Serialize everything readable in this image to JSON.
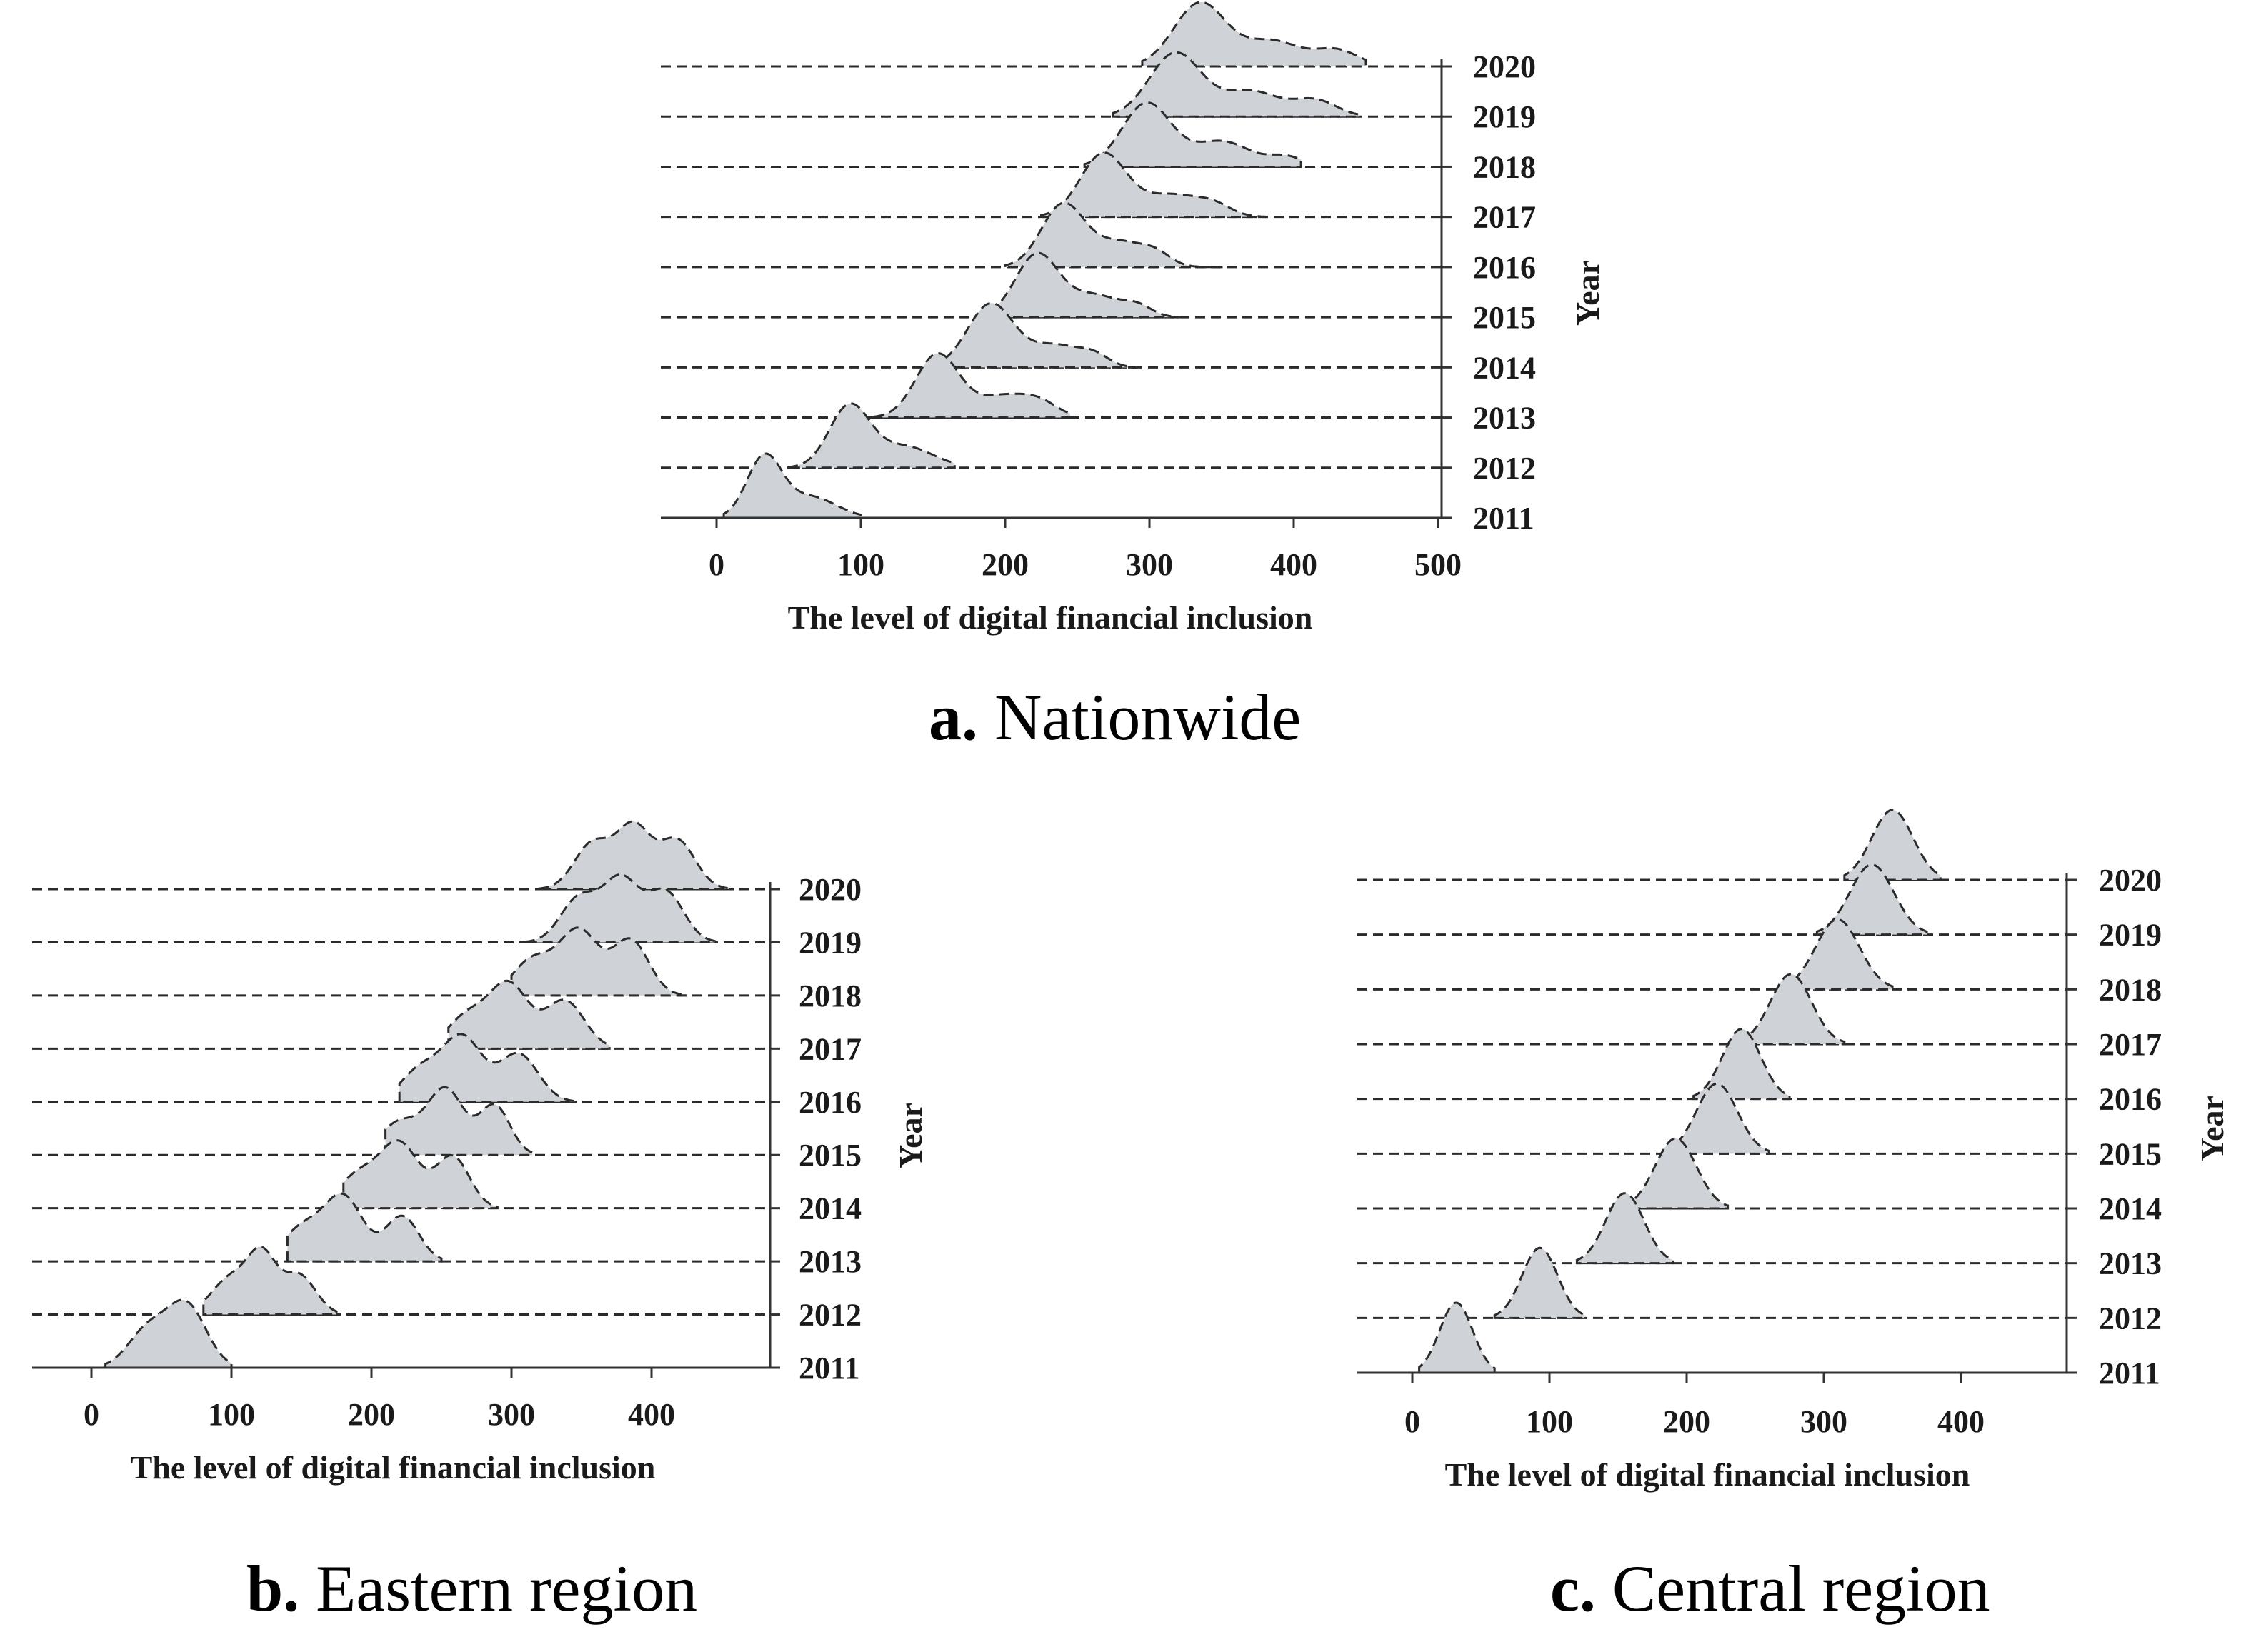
{
  "colors": {
    "fill": "#cfd3d8",
    "line": "#2b2b2b"
  },
  "chart_data": [
    {
      "type": "ridgeline",
      "caption_letter": "a.",
      "caption_text": "Nationwide",
      "xlabel": "The level of digital financial inclusion",
      "ylabel": "Year",
      "xlim": [
        -40,
        500
      ],
      "xticks": [
        0,
        100,
        200,
        300,
        400,
        500
      ],
      "years": [
        "2011",
        "2012",
        "2013",
        "2014",
        "2015",
        "2016",
        "2017",
        "2018",
        "2019",
        "2020"
      ],
      "series": [
        {
          "year": "2011",
          "peaks": [
            [
              33,
              12,
              1.0
            ],
            [
              65,
              18,
              0.35
            ]
          ],
          "range": [
            5,
            100
          ]
        },
        {
          "year": "2012",
          "peaks": [
            [
              92,
              14,
              1.0
            ],
            [
              130,
              20,
              0.35
            ]
          ],
          "range": [
            50,
            165
          ]
        },
        {
          "year": "2013",
          "peaks": [
            [
              153,
              15,
              1.0
            ],
            [
              200,
              20,
              0.35
            ],
            [
              225,
              12,
              0.15
            ]
          ],
          "range": [
            110,
            245
          ]
        },
        {
          "year": "2014",
          "peaks": [
            [
              190,
              16,
              1.0
            ],
            [
              235,
              18,
              0.35
            ],
            [
              262,
              10,
              0.15
            ]
          ],
          "range": [
            150,
            290
          ]
        },
        {
          "year": "2015",
          "peaks": [
            [
              222,
              15,
              1.0
            ],
            [
              262,
              18,
              0.35
            ],
            [
              292,
              10,
              0.15
            ]
          ],
          "range": [
            180,
            320
          ]
        },
        {
          "year": "2016",
          "peaks": [
            [
              240,
              15,
              1.0
            ],
            [
              280,
              18,
              0.4
            ],
            [
              305,
              10,
              0.15
            ]
          ],
          "range": [
            200,
            350
          ]
        },
        {
          "year": "2017",
          "peaks": [
            [
              268,
              16,
              1.0
            ],
            [
              315,
              20,
              0.35
            ],
            [
              345,
              12,
              0.15
            ]
          ],
          "range": [
            225,
            380
          ]
        },
        {
          "year": "2018",
          "peaks": [
            [
              298,
              17,
              1.0
            ],
            [
              350,
              20,
              0.4
            ],
            [
              395,
              12,
              0.15
            ]
          ],
          "range": [
            255,
            405
          ]
        },
        {
          "year": "2019",
          "peaks": [
            [
              318,
              18,
              1.0
            ],
            [
              370,
              20,
              0.4
            ],
            [
              415,
              15,
              0.25
            ]
          ],
          "range": [
            275,
            445
          ]
        },
        {
          "year": "2020",
          "peaks": [
            [
              335,
              18,
              1.0
            ],
            [
              385,
              20,
              0.4
            ],
            [
              430,
              15,
              0.25
            ]
          ],
          "range": [
            295,
            450
          ]
        }
      ]
    },
    {
      "type": "ridgeline",
      "caption_letter": "b.",
      "caption_text": "Eastern region",
      "xlabel": "The level of digital financial inclusion",
      "ylabel": "Year",
      "xlim": [
        -40,
        480
      ],
      "xticks": [
        0,
        100,
        200,
        300,
        400
      ],
      "years": [
        "2011",
        "2012",
        "2013",
        "2014",
        "2015",
        "2016",
        "2017",
        "2018",
        "2019",
        "2020"
      ],
      "series": [
        {
          "year": "2011",
          "peaks": [
            [
              68,
              14,
              1.0
            ],
            [
              40,
              14,
              0.6
            ]
          ],
          "range": [
            10,
            100
          ]
        },
        {
          "year": "2012",
          "peaks": [
            [
              122,
              10,
              1.0
            ],
            [
              100,
              14,
              0.7
            ],
            [
              148,
              12,
              0.75
            ]
          ],
          "range": [
            80,
            175
          ]
        },
        {
          "year": "2013",
          "peaks": [
            [
              180,
              14,
              1.0
            ],
            [
              222,
              12,
              0.7
            ],
            [
              150,
              14,
              0.5
            ]
          ],
          "range": [
            140,
            250
          ]
        },
        {
          "year": "2014",
          "peaks": [
            [
              220,
              14,
              1.0
            ],
            [
              258,
              12,
              0.8
            ],
            [
              190,
              14,
              0.5
            ]
          ],
          "range": [
            180,
            290
          ]
        },
        {
          "year": "2015",
          "peaks": [
            [
              253,
              13,
              1.0
            ],
            [
              288,
              11,
              0.75
            ],
            [
              220,
              14,
              0.5
            ]
          ],
          "range": [
            210,
            315
          ]
        },
        {
          "year": "2016",
          "peaks": [
            [
              265,
              14,
              1.0
            ],
            [
              305,
              14,
              0.75
            ],
            [
              235,
              14,
              0.5
            ]
          ],
          "range": [
            220,
            345
          ]
        },
        {
          "year": "2017",
          "peaks": [
            [
              298,
              14,
              1.0
            ],
            [
              338,
              14,
              0.75
            ],
            [
              268,
              14,
              0.5
            ]
          ],
          "range": [
            255,
            370
          ]
        },
        {
          "year": "2018",
          "peaks": [
            [
              348,
              14,
              1.0
            ],
            [
              385,
              13,
              0.85
            ],
            [
              315,
              14,
              0.55
            ]
          ],
          "range": [
            300,
            425
          ]
        },
        {
          "year": "2019",
          "peaks": [
            [
              378,
              13,
              1.0
            ],
            [
              410,
              13,
              0.8
            ],
            [
              348,
              13,
              0.7
            ]
          ],
          "range": [
            310,
            445
          ]
        },
        {
          "year": "2020",
          "peaks": [
            [
              387,
              12,
              1.0
            ],
            [
              418,
              13,
              0.8
            ],
            [
              358,
              13,
              0.75
            ]
          ],
          "range": [
            320,
            455
          ]
        }
      ]
    },
    {
      "type": "ridgeline",
      "caption_letter": "c.",
      "caption_text": "Central region",
      "xlabel": "The level of digital financial inclusion",
      "ylabel": "Year",
      "xlim": [
        -40,
        480
      ],
      "xticks": [
        0,
        100,
        200,
        300,
        400
      ],
      "years": [
        "2011",
        "2012",
        "2013",
        "2014",
        "2015",
        "2016",
        "2017",
        "2018",
        "2019",
        "2020"
      ],
      "series": [
        {
          "year": "2011",
          "peaks": [
            [
              32,
              12,
              1.0
            ]
          ],
          "range": [
            5,
            60
          ]
        },
        {
          "year": "2012",
          "peaks": [
            [
              93,
              13,
              1.0
            ]
          ],
          "range": [
            60,
            125
          ]
        },
        {
          "year": "2013",
          "peaks": [
            [
              155,
              14,
              1.0
            ]
          ],
          "range": [
            120,
            190
          ]
        },
        {
          "year": "2014",
          "peaks": [
            [
              192,
              15,
              1.0
            ]
          ],
          "range": [
            155,
            230
          ]
        },
        {
          "year": "2015",
          "peaks": [
            [
              222,
              15,
              1.0
            ]
          ],
          "range": [
            185,
            260
          ]
        },
        {
          "year": "2016",
          "peaks": [
            [
              240,
              14,
              1.0
            ]
          ],
          "range": [
            205,
            275
          ]
        },
        {
          "year": "2017",
          "peaks": [
            [
              276,
              15,
              1.0
            ]
          ],
          "range": [
            240,
            315
          ]
        },
        {
          "year": "2018",
          "peaks": [
            [
              310,
              16,
              1.0
            ]
          ],
          "range": [
            270,
            350
          ]
        },
        {
          "year": "2019",
          "peaks": [
            [
              335,
              16,
              1.0
            ]
          ],
          "range": [
            295,
            375
          ]
        },
        {
          "year": "2020",
          "peaks": [
            [
              350,
              15,
              1.0
            ]
          ],
          "range": [
            315,
            385
          ]
        }
      ]
    }
  ]
}
